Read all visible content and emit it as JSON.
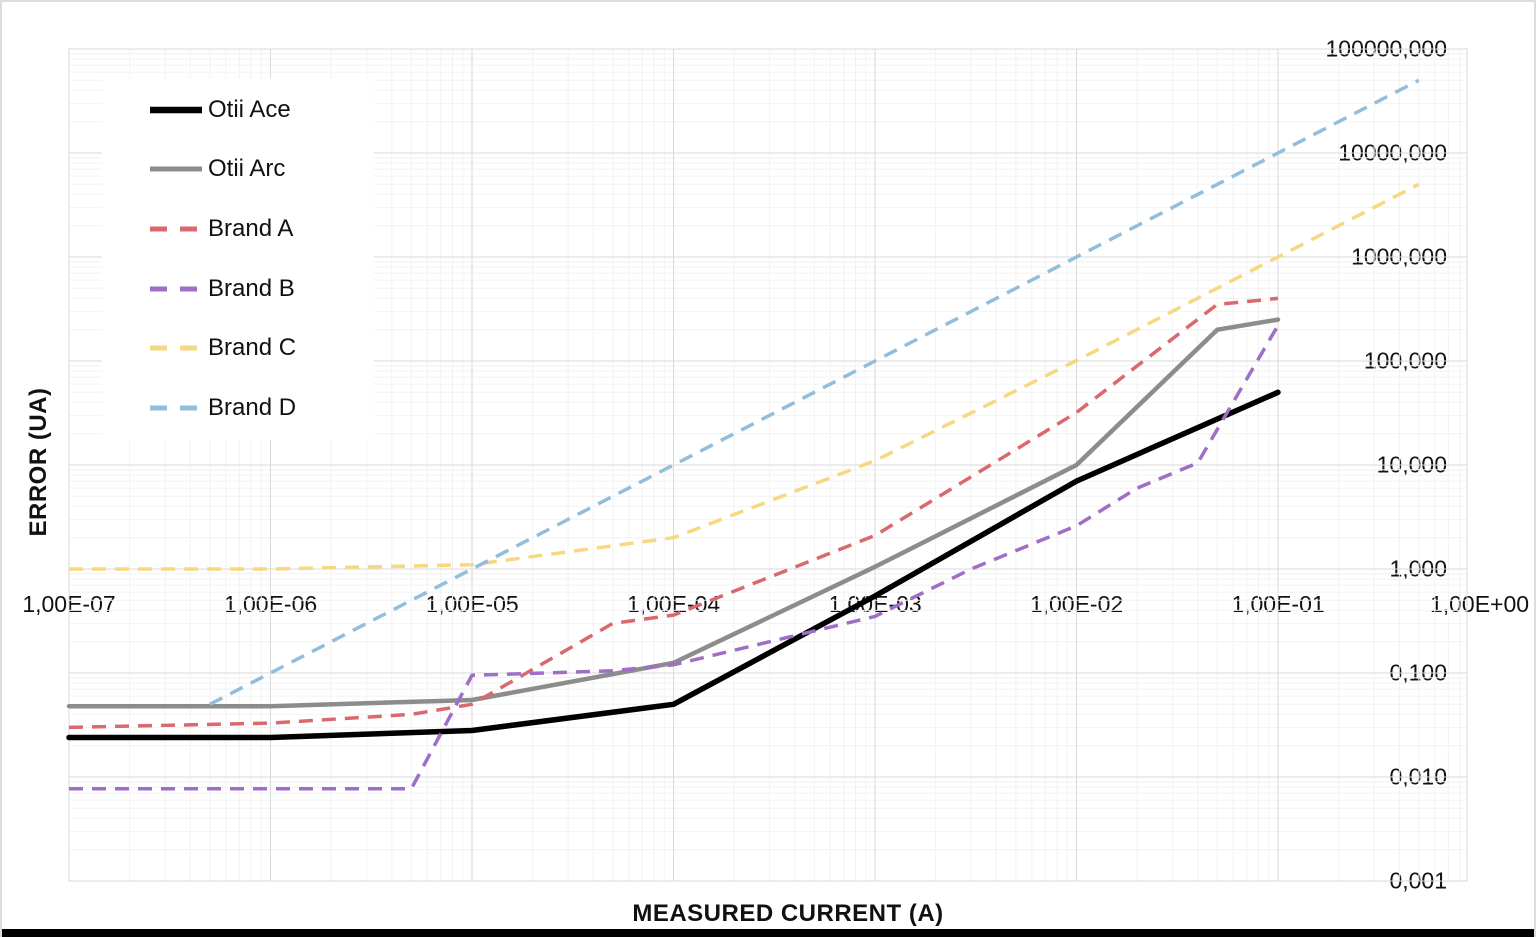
{
  "chart_data": {
    "type": "line",
    "title": "",
    "xlabel": "MEASURED CURRENT (A)",
    "ylabel": "ERROR (UA)",
    "x_axis": {
      "scale": "log",
      "min": 1e-07,
      "max": 0.87,
      "ticks": [
        {
          "value": 1e-07,
          "label": "1,00E-07"
        },
        {
          "value": 1e-06,
          "label": "1,00E-06"
        },
        {
          "value": 1e-05,
          "label": "1,00E-05"
        },
        {
          "value": 0.0001,
          "label": "1,00E-04"
        },
        {
          "value": 0.001,
          "label": "1,00E-03"
        },
        {
          "value": 0.01,
          "label": "1,00E-02"
        },
        {
          "value": 0.1,
          "label": "1,00E-01"
        },
        {
          "value": 1,
          "label": "1,00E+00"
        }
      ]
    },
    "y_axis": {
      "scale": "log",
      "side": "right",
      "min": 0.001,
      "max": 100000,
      "ticks": [
        {
          "value": 100000,
          "label": "100000,000"
        },
        {
          "value": 10000,
          "label": "10000,000"
        },
        {
          "value": 1000,
          "label": "1000,000"
        },
        {
          "value": 100,
          "label": "100,000"
        },
        {
          "value": 10,
          "label": "10,000"
        },
        {
          "value": 1,
          "label": "1,000"
        },
        {
          "value": 0.1,
          "label": "0,100"
        },
        {
          "value": 0.01,
          "label": "0,010"
        },
        {
          "value": 0.001,
          "label": "0,001"
        }
      ]
    },
    "grid": {
      "major": true,
      "minor": true
    },
    "legend_position": "top-left",
    "series": [
      {
        "name": "Otii Ace",
        "color": "#000000",
        "style": "solid",
        "width": 5.5,
        "points": [
          [
            1e-07,
            0.024
          ],
          [
            1e-06,
            0.024
          ],
          [
            1e-05,
            0.028
          ],
          [
            0.0001,
            0.05
          ],
          [
            0.001,
            0.55
          ],
          [
            0.01,
            7
          ],
          [
            0.1,
            50
          ]
        ]
      },
      {
        "name": "Otii Arc",
        "color": "#8c8c8c",
        "style": "solid",
        "width": 4.5,
        "points": [
          [
            1e-07,
            0.048
          ],
          [
            1e-06,
            0.048
          ],
          [
            1e-05,
            0.055
          ],
          [
            0.0001,
            0.125
          ],
          [
            0.001,
            1.05
          ],
          [
            0.01,
            10
          ],
          [
            0.05,
            200
          ],
          [
            0.1,
            250
          ]
        ]
      },
      {
        "name": "Brand A",
        "color": "#d9696e",
        "style": "dashed",
        "width": 3.5,
        "points": [
          [
            1e-07,
            0.03
          ],
          [
            1e-06,
            0.033
          ],
          [
            5e-06,
            0.04
          ],
          [
            1e-05,
            0.05
          ],
          [
            5e-05,
            0.3
          ],
          [
            0.0001,
            0.36
          ],
          [
            0.001,
            2.1
          ],
          [
            0.01,
            32
          ],
          [
            0.05,
            350
          ],
          [
            0.1,
            400
          ]
        ]
      },
      {
        "name": "Brand B",
        "color": "#9e6fc4",
        "style": "dashed",
        "width": 3.5,
        "points": [
          [
            1e-07,
            0.0077
          ],
          [
            5e-06,
            0.0077
          ],
          [
            1e-05,
            0.095
          ],
          [
            5e-05,
            0.105
          ],
          [
            0.0001,
            0.12
          ],
          [
            0.001,
            0.35
          ],
          [
            0.003,
            1
          ],
          [
            0.01,
            2.6
          ],
          [
            0.02,
            6
          ],
          [
            0.04,
            10.5
          ],
          [
            0.1,
            220
          ]
        ]
      },
      {
        "name": "Brand C",
        "color": "#f7d881",
        "style": "dashed",
        "width": 3.5,
        "points": [
          [
            1e-07,
            1
          ],
          [
            1e-06,
            1
          ],
          [
            1e-05,
            1.1
          ],
          [
            0.0001,
            2
          ],
          [
            0.001,
            11
          ],
          [
            0.01,
            101
          ],
          [
            0.1,
            1001
          ],
          [
            0.5,
            5000
          ]
        ]
      },
      {
        "name": "Brand D",
        "color": "#92bede",
        "style": "dashed",
        "width": 3.5,
        "points": [
          [
            5e-07,
            0.05
          ],
          [
            1e-06,
            0.1
          ],
          [
            1e-05,
            1
          ],
          [
            0.0001,
            10
          ],
          [
            0.001,
            100
          ],
          [
            0.01,
            1000
          ],
          [
            0.1,
            10000
          ],
          [
            0.5,
            50000
          ]
        ]
      }
    ],
    "colors": {
      "gridline_major": "#d9d9d9",
      "gridline_minor": "#f2f2f2",
      "plot_border": "#d9d9d9",
      "background": "#ffffff",
      "bottom_bar": "#000000"
    }
  }
}
